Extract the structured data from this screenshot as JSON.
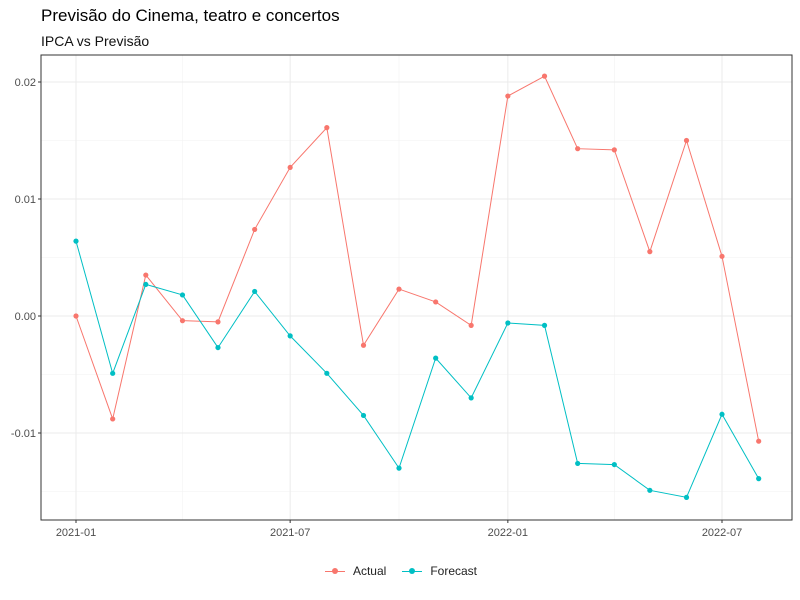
{
  "chart_data": {
    "type": "line",
    "title": "Previsão do Cinema, teatro e concertos",
    "subtitle": "IPCA vs Previsão",
    "xlabel": "",
    "ylabel": "",
    "x": [
      "2021-01-01",
      "2021-02-01",
      "2021-03-01",
      "2021-04-01",
      "2021-05-01",
      "2021-06-01",
      "2021-07-01",
      "2021-08-01",
      "2021-09-01",
      "2021-10-01",
      "2021-11-01",
      "2021-12-01",
      "2022-01-01",
      "2022-02-01",
      "2022-03-01",
      "2022-04-01",
      "2022-05-01",
      "2022-06-01",
      "2022-07-01",
      "2022-08-01"
    ],
    "x_ticks": [
      "2021-01",
      "2021-07",
      "2022-01",
      "2022-07"
    ],
    "ylim": [
      -0.0175,
      0.0225
    ],
    "y_ticks": [
      -0.01,
      0.0,
      0.01,
      0.02
    ],
    "y_tick_labels": [
      "-0.01",
      "0.00",
      "0.01",
      "0.02"
    ],
    "grid": true,
    "legend_position": "bottom",
    "series": [
      {
        "name": "Actual",
        "color": "#F8766D",
        "values": [
          0.0,
          -0.0088,
          0.0035,
          -0.0004,
          -0.0005,
          0.0074,
          0.0127,
          0.0161,
          -0.0025,
          0.0023,
          0.0012,
          -0.0008,
          0.0188,
          0.0205,
          0.0143,
          0.0142,
          0.0055,
          0.015,
          0.0051,
          -0.0107
        ]
      },
      {
        "name": "Forecast",
        "color": "#00BFC4",
        "values": [
          0.0064,
          -0.0049,
          0.0027,
          0.0018,
          -0.0027,
          0.0021,
          -0.0017,
          -0.0049,
          -0.0085,
          -0.013,
          -0.0036,
          -0.007,
          -0.0006,
          -0.0008,
          -0.0126,
          -0.0127,
          -0.0149,
          -0.0155,
          -0.0084,
          -0.0139
        ]
      }
    ]
  }
}
